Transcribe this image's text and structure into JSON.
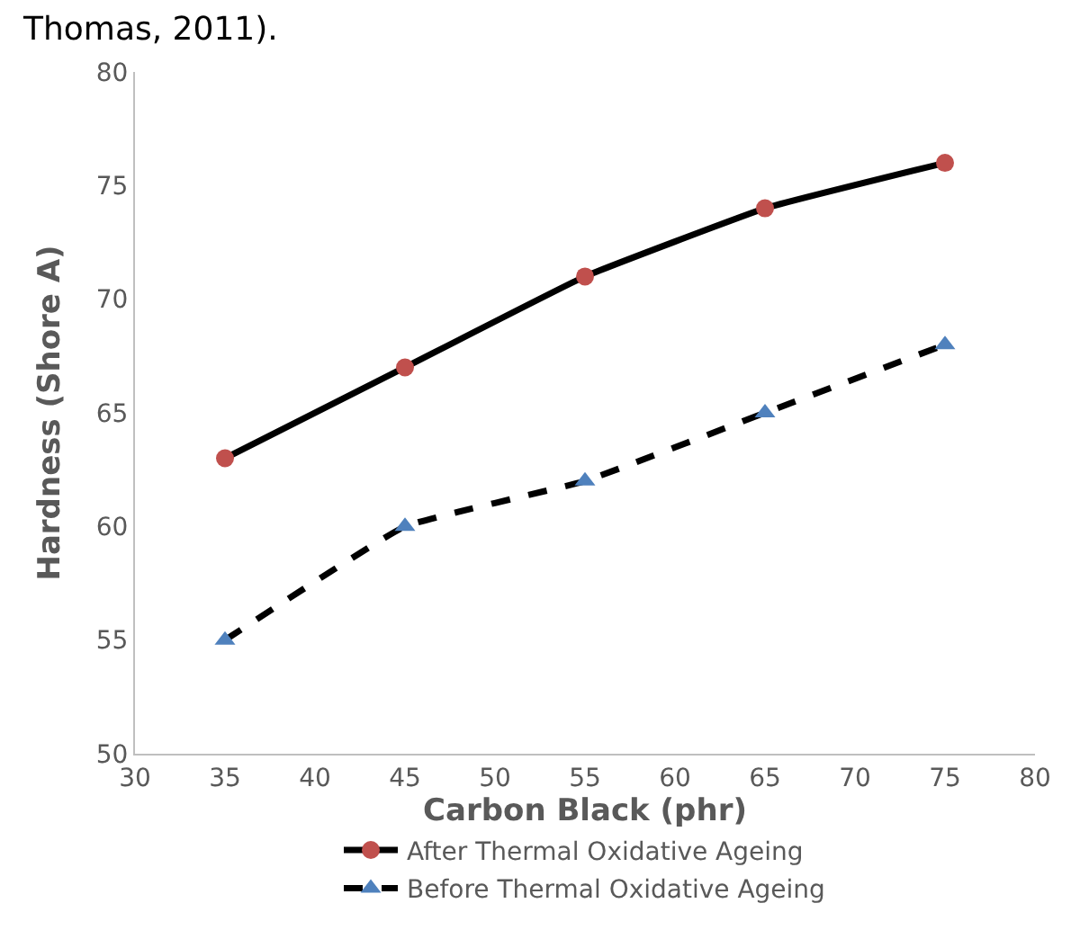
{
  "chart_data": {
    "type": "line",
    "x": [
      35,
      45,
      55,
      65,
      75
    ],
    "series": [
      {
        "name": "After Thermal Oxidative Ageing",
        "color": "#c0504d",
        "marker": "circle",
        "line_style": "solid",
        "values": [
          63,
          67,
          71,
          74,
          76
        ]
      },
      {
        "name": "Before Thermal Oxidative Ageing",
        "color": "#4f81bd",
        "marker": "triangle",
        "line_style": "dashed",
        "values": [
          55,
          60,
          62,
          65,
          68
        ]
      }
    ],
    "xlabel": "Carbon Black (phr)",
    "ylabel": "Hardness (Shore A)",
    "xlim": [
      30,
      80
    ],
    "xticks": [
      30,
      35,
      40,
      45,
      50,
      55,
      60,
      65,
      70,
      75,
      80
    ],
    "ylim": [
      50,
      80
    ],
    "yticks": [
      50,
      55,
      60,
      65,
      70,
      75,
      80
    ],
    "legend": "bottom",
    "annotations": [
      "Thomas, 2011)."
    ]
  }
}
